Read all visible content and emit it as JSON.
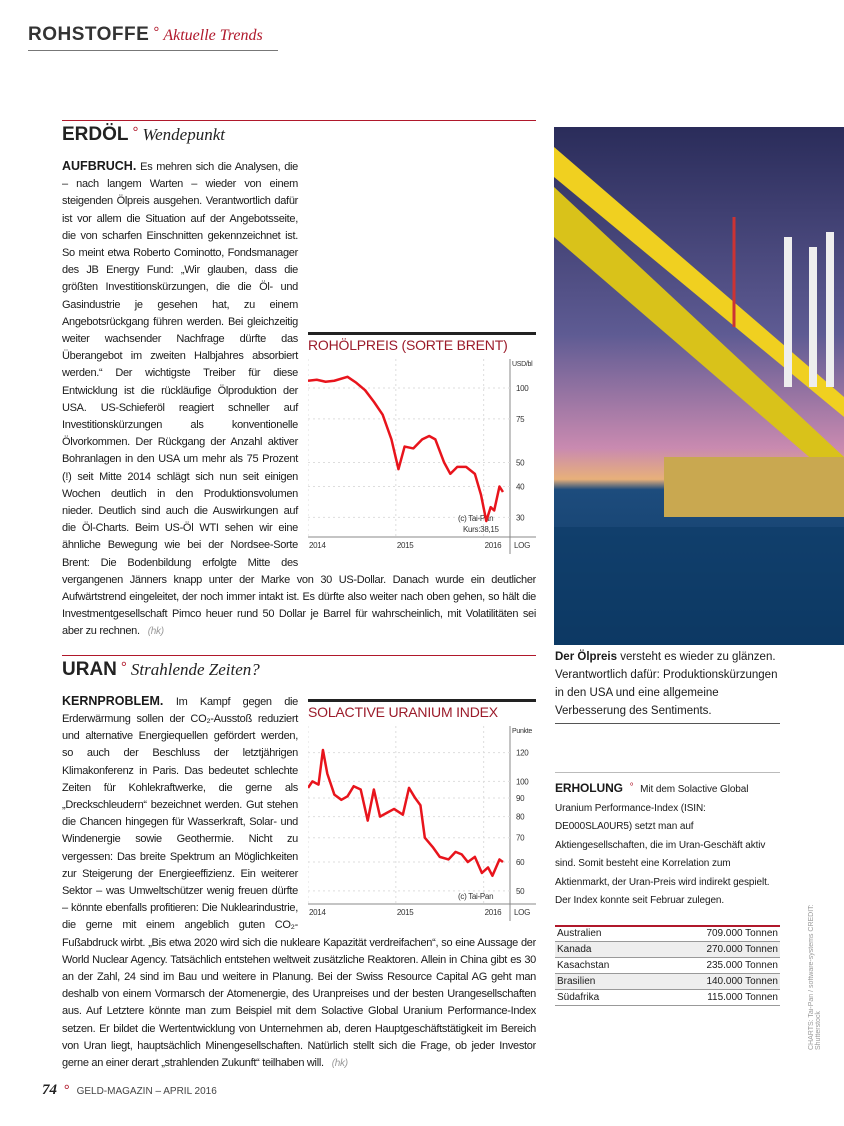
{
  "header": {
    "section": "ROHSTOFFE",
    "subtitle": "Aktuelle Trends"
  },
  "article1": {
    "title": "ERDÖL",
    "subtitle": "Wendepunkt",
    "lead": "AUFBRUCH.",
    "text": "Es mehren sich die Analysen, die – nach langem Warten – wieder von einem steigenden Ölpreis ausgehen. Verantwortlich dafür ist vor allem die Situation auf der Angebotsseite, die von scharfen Einschnitten gekennzeichnet ist. So meint etwa Roberto Cominotto, Fondsmanager des JB Energy Fund: „Wir glauben, dass die größten Investitionskürzungen, die die Öl- und Gasindustrie je gesehen hat, zu einem Angebotsrückgang führen werden. Bei gleichzeitig weiter wachsender Nachfrage dürfte das Überangebot im zweiten Halbjahres absorbiert werden.“ Der wichtigste Treiber für diese Entwicklung ist die rückläufige Ölproduktion der USA. US-Schieferöl reagiert schneller auf Investitionskürzungen als konventionelle Ölvorkommen. Der Rückgang der Anzahl aktiver Bohranlagen in den USA um mehr als 75 Prozent (!) seit Mitte 2014 schlägt sich nun seit einigen Wochen deutlich in den Produktionsvolumen nieder. Deutlich sind auch die Auswirkungen auf die Öl-Charts. Beim US-Öl WTI sehen wir eine ähnliche Bewegung wie bei der Nordsee-Sorte Brent: Die Bodenbildung erfolgte Mitte des vergangenen Jänners knapp unter der Marke von 30 US-Dollar. Danach wurde ein deutlicher Aufwärtstrend eingeleitet, der noch immer intakt ist. Es dürfte also weiter nach oben gehen, so hält die Investmentgesellschaft Pimco heuer rund 50 Dollar je Barrel für wahrscheinlich, mit Volatilitäten sei aber zu rechnen.",
    "author": "(hk)"
  },
  "article2": {
    "title": "URAN",
    "subtitle": "Strahlende Zeiten?",
    "lead": "KERNPROBLEM.",
    "text": "Im Kampf gegen die Erderwärmung sollen der CO₂-Ausstoß reduziert und alternative Energiequellen gefördert werden, so auch der Beschluss der letztjährigen Klimakonferenz in Paris. Das bedeutet schlechte Zeiten für Kohlekraftwerke, die gerne als „Dreckschleudern“ bezeichnet werden. Gut stehen die Chancen hingegen für Wasserkraft, Solar- und Windenergie sowie Geothermie. Nicht zu vergessen: Das breite Spektrum an Möglichkeiten zur Steigerung der Energieeffizienz. Ein weiterer Sektor – was Umweltschützer wenig freuen dürfte – könnte ebenfalls profitieren: Die Nuklearindustrie, die gerne mit einem angeblich guten CO₂-Fußabdruck wirbt. „Bis etwa 2020 wird sich die nukleare Kapazität verdreifachen“, so eine Aussage der World Nuclear Agency. Tatsächlich entstehen weltweit zusätzliche Reaktoren. Allein in China gibt es 30 an der Zahl, 24 sind im Bau und weitere in Planung. Bei der Swiss Resource Capital AG geht man deshalb von einem Vormarsch der Atomenergie, des Uranpreises und der besten Urangesellschaften aus. Auf Letztere könnte man zum Beispiel mit dem Solactive Global Uranium Performance-Index setzen. Er bildet die Wertentwicklung von Unternehmen ab, deren Hauptgeschäftstätigkeit im Bereich von Uran liegt, hauptsächlich Minengesellschaften. Natürlich stellt sich die Frage, ob jeder Investor gerne an einer derart „strahlenden Zukunft“ teilhaben will.",
    "author": "(hk)"
  },
  "chart_data": [
    {
      "type": "line",
      "title": "ROHÖLPREIS (SORTE BRENT)",
      "ylabel": "USD/bl",
      "scale": "log",
      "yticks": [
        30,
        40,
        50,
        75,
        100
      ],
      "xticks": [
        "2014",
        "2015",
        "2016"
      ],
      "ylim": [
        25,
        115
      ],
      "scale_label": "LOG",
      "source": "(c) Tai-Pan",
      "note": "Kurs:38,15",
      "color": "#e8141c",
      "x": [
        2014.0,
        2014.1,
        2014.2,
        2014.3,
        2014.45,
        2014.55,
        2014.65,
        2014.75,
        2014.85,
        2014.95,
        2015.03,
        2015.1,
        2015.2,
        2015.3,
        2015.38,
        2015.45,
        2015.55,
        2015.62,
        2015.7,
        2015.8,
        2015.9,
        2015.97,
        2016.03,
        2016.08,
        2016.12,
        2016.18,
        2016.22
      ],
      "y": [
        107,
        108,
        106,
        107,
        111,
        105,
        98,
        88,
        78,
        62,
        47,
        58,
        57,
        62,
        64,
        62,
        50,
        45,
        48,
        48,
        45,
        37,
        29,
        33,
        32,
        40,
        38
      ]
    },
    {
      "type": "line",
      "title": "SOLACTIVE URANIUM INDEX",
      "ylabel": "Punkte",
      "scale": "log",
      "yticks": [
        50,
        60,
        70,
        80,
        90,
        100,
        120
      ],
      "xticks": [
        "2014",
        "2015",
        "2016"
      ],
      "ylim": [
        46,
        130
      ],
      "scale_label": "LOG",
      "source": "(c) Tai-Pan",
      "color": "#e8141c",
      "x": [
        2014.0,
        2014.05,
        2014.12,
        2014.17,
        2014.22,
        2014.3,
        2014.38,
        2014.45,
        2014.52,
        2014.6,
        2014.68,
        2014.75,
        2014.82,
        2014.9,
        2014.98,
        2015.08,
        2015.15,
        2015.22,
        2015.28,
        2015.33,
        2015.42,
        2015.5,
        2015.6,
        2015.68,
        2015.75,
        2015.82,
        2015.9,
        2015.98,
        2016.05,
        2016.1,
        2016.18,
        2016.22
      ],
      "y": [
        96,
        100,
        98,
        122,
        105,
        92,
        89,
        91,
        97,
        95,
        78,
        95,
        80,
        82,
        84,
        81,
        96,
        90,
        86,
        70,
        66,
        62,
        61,
        64,
        63,
        60,
        62,
        56,
        58,
        55,
        61,
        60
      ]
    }
  ],
  "caption": {
    "lead": "Der Ölpreis",
    "text": "versteht es wieder zu glänzen. Verantwortlich dafür: Produktionskürzungen in den USA und eine allgemeine Verbesserung des Sentiments."
  },
  "box": {
    "lead": "ERHOLUNG",
    "text": "Mit dem Solactive Global Uranium Performance-Index (ISIN: DE000SLA0UR5) setzt man auf Aktiengesellschaften, die im Uran-Geschäft aktiv sind. Somit besteht eine Korrelation zum Aktienmarkt, der Uran-Preis wird indirekt gespielt. Der Index konnte seit Februar zulegen."
  },
  "table": [
    {
      "country": "Australien",
      "value": "709.000 Tonnen"
    },
    {
      "country": "Kanada",
      "value": "270.000 Tonnen"
    },
    {
      "country": "Kasachstan",
      "value": "235.000 Tonnen"
    },
    {
      "country": "Brasilien",
      "value": "140.000 Tonnen"
    },
    {
      "country": "Südafrika",
      "value": "115.000 Tonnen"
    }
  ],
  "credit": "CHARTS: Tai-Pan / software-systems  CREDIT: Shutterstock",
  "footer": {
    "page": "74",
    "text": "GELD-MAGAZIN – APRIL 2016"
  }
}
